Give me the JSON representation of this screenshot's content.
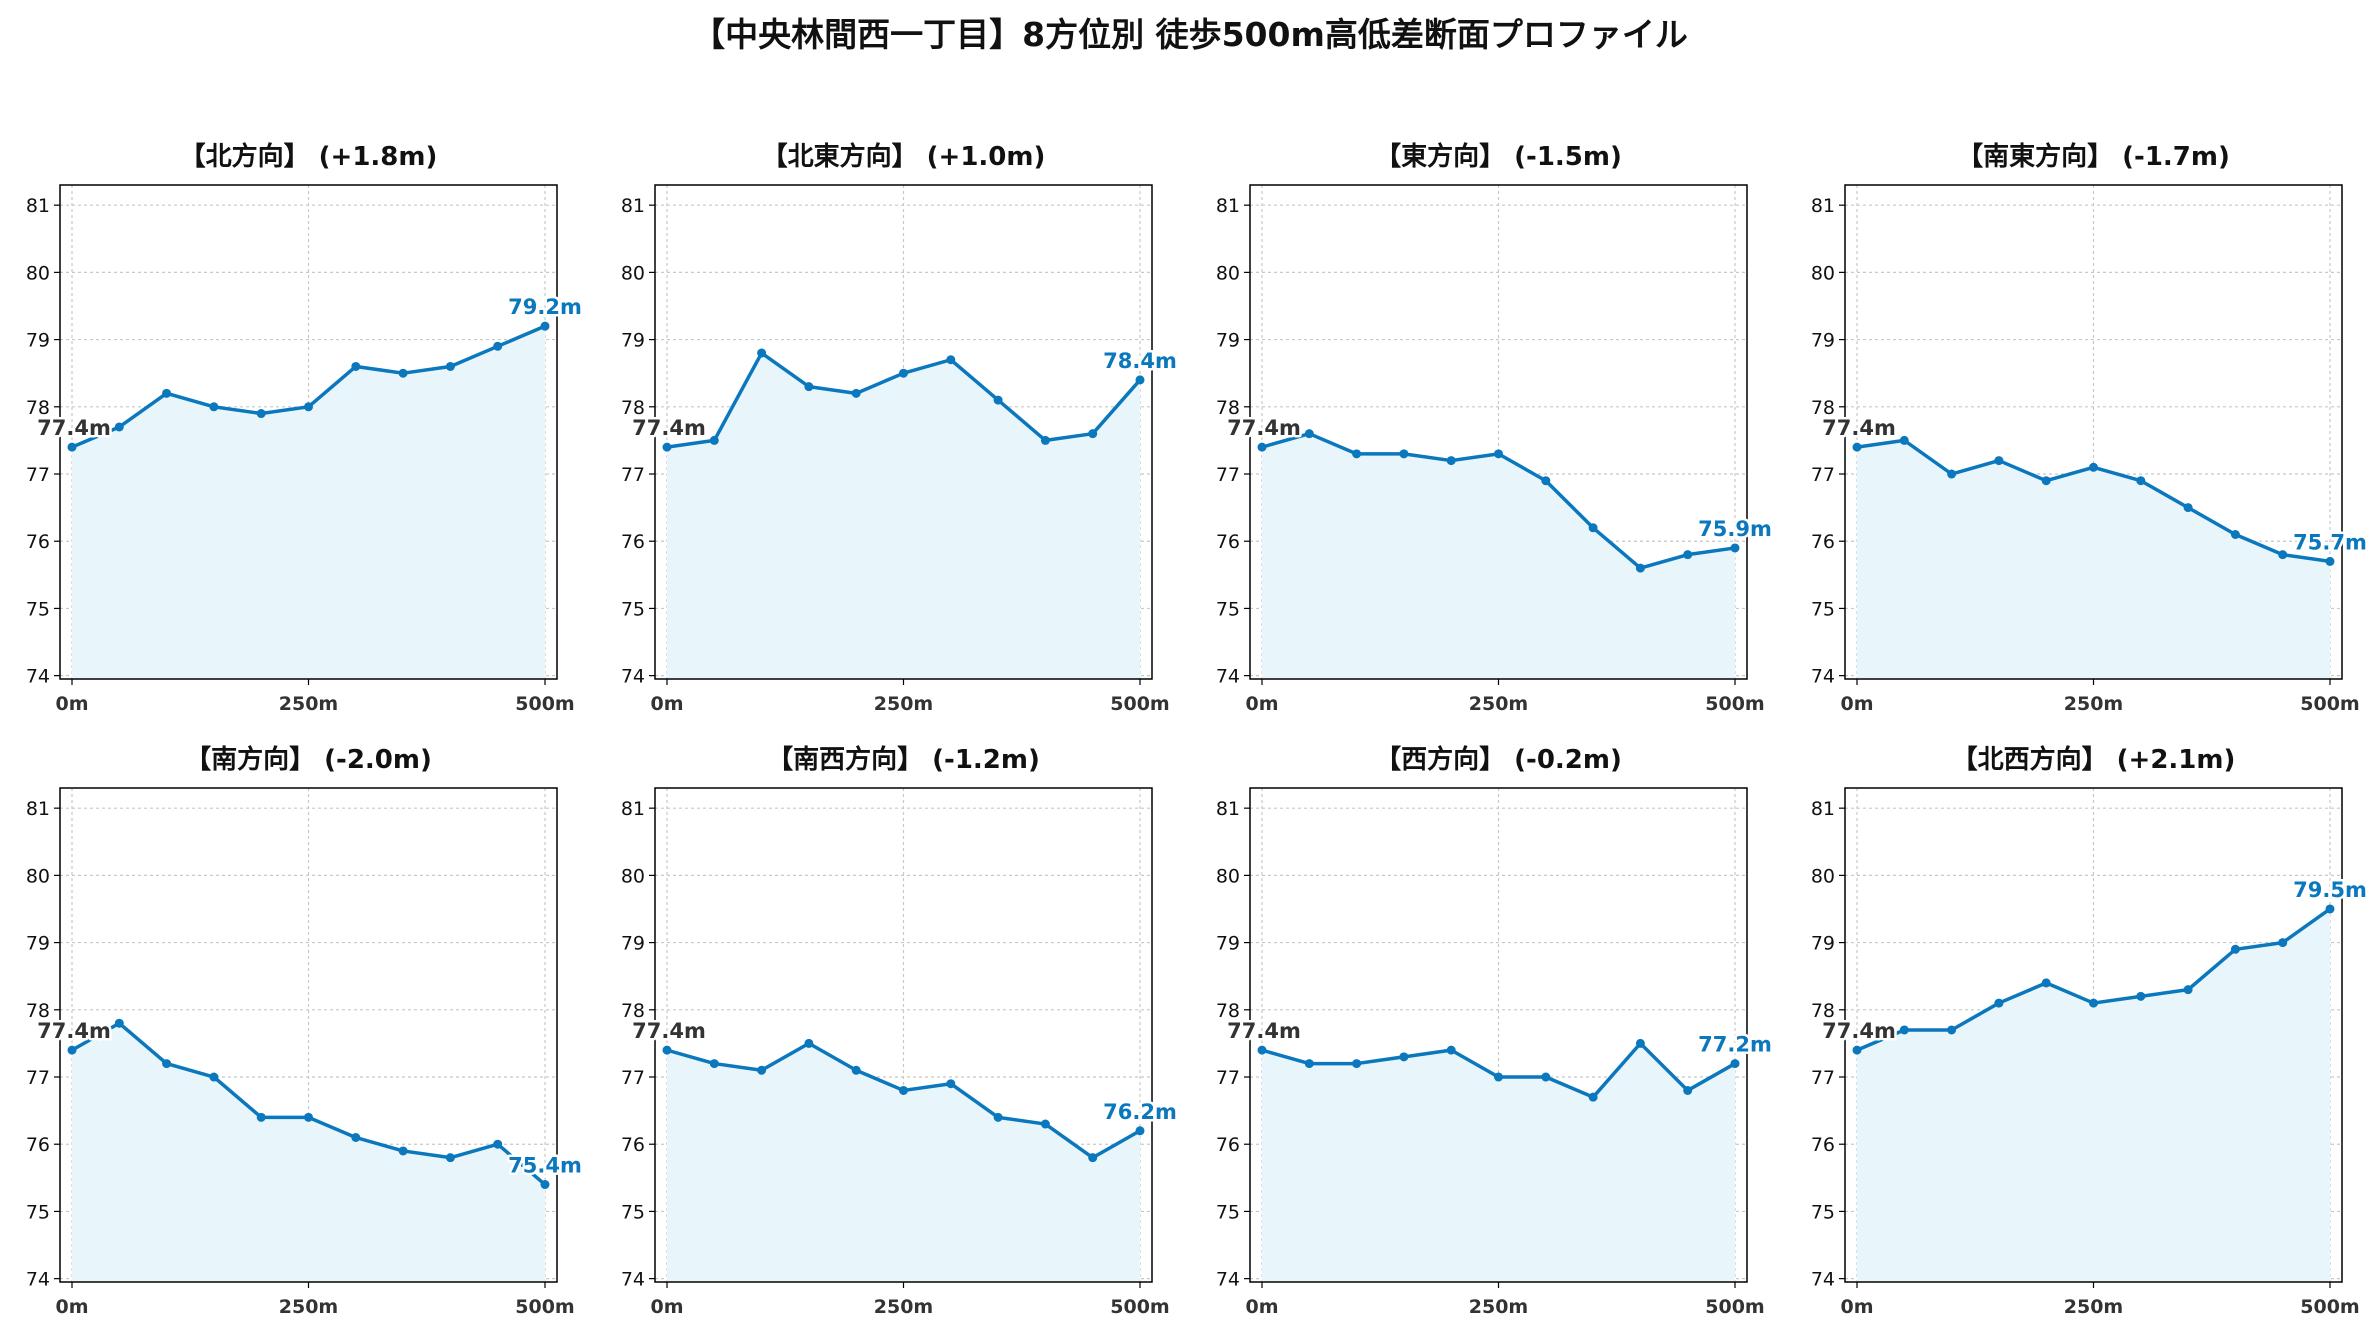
{
  "title": "【中央林間西一丁目】8方位別 徒歩500m高低差断面プロファイル",
  "colors": {
    "line": "#0b77bd",
    "fill": "#e8f6fb",
    "grid": "#c8c8c8",
    "axis": "#000000"
  },
  "chart_data": [
    {
      "type": "area",
      "title": "【北方向】 (+1.8m)",
      "x": [
        0,
        50,
        100,
        150,
        200,
        250,
        300,
        350,
        400,
        450,
        500
      ],
      "values": [
        77.4,
        77.7,
        78.2,
        78.0,
        77.9,
        78.0,
        78.6,
        78.5,
        78.6,
        78.9,
        79.2
      ],
      "start_label": "77.4m",
      "end_label": "79.2m",
      "xticks": [
        "0m",
        "250m",
        "500m"
      ],
      "yticks": [
        "74",
        "75",
        "76",
        "77",
        "78",
        "79",
        "80",
        "81"
      ],
      "ylim": [
        74,
        81.3
      ],
      "xlim": [
        0,
        500
      ],
      "grid": true
    },
    {
      "type": "area",
      "title": "【北東方向】 (+1.0m)",
      "x": [
        0,
        50,
        100,
        150,
        200,
        250,
        300,
        350,
        400,
        450,
        500
      ],
      "values": [
        77.4,
        77.5,
        78.8,
        78.3,
        78.2,
        78.5,
        78.7,
        78.1,
        77.5,
        77.6,
        78.4
      ],
      "start_label": "77.4m",
      "end_label": "78.4m",
      "xticks": [
        "0m",
        "250m",
        "500m"
      ],
      "yticks": [
        "74",
        "75",
        "76",
        "77",
        "78",
        "79",
        "80",
        "81"
      ],
      "ylim": [
        74,
        81.3
      ],
      "xlim": [
        0,
        500
      ],
      "grid": true
    },
    {
      "type": "area",
      "title": "【東方向】 (-1.5m)",
      "x": [
        0,
        50,
        100,
        150,
        200,
        250,
        300,
        350,
        400,
        450,
        500
      ],
      "values": [
        77.4,
        77.6,
        77.3,
        77.3,
        77.2,
        77.3,
        76.9,
        76.2,
        75.6,
        75.8,
        75.9
      ],
      "start_label": "77.4m",
      "end_label": "75.9m",
      "xticks": [
        "0m",
        "250m",
        "500m"
      ],
      "yticks": [
        "74",
        "75",
        "76",
        "77",
        "78",
        "79",
        "80",
        "81"
      ],
      "ylim": [
        74,
        81.3
      ],
      "xlim": [
        0,
        500
      ],
      "grid": true
    },
    {
      "type": "area",
      "title": "【南東方向】 (-1.7m)",
      "x": [
        0,
        50,
        100,
        150,
        200,
        250,
        300,
        350,
        400,
        450,
        500
      ],
      "values": [
        77.4,
        77.5,
        77.0,
        77.2,
        76.9,
        77.1,
        76.9,
        76.5,
        76.1,
        75.8,
        75.7
      ],
      "start_label": "77.4m",
      "end_label": "75.7m",
      "xticks": [
        "0m",
        "250m",
        "500m"
      ],
      "yticks": [
        "74",
        "75",
        "76",
        "77",
        "78",
        "79",
        "80",
        "81"
      ],
      "ylim": [
        74,
        81.3
      ],
      "xlim": [
        0,
        500
      ],
      "grid": true
    },
    {
      "type": "area",
      "title": "【南方向】 (-2.0m)",
      "x": [
        0,
        50,
        100,
        150,
        200,
        250,
        300,
        350,
        400,
        450,
        500
      ],
      "values": [
        77.4,
        77.8,
        77.2,
        77.0,
        76.4,
        76.4,
        76.1,
        75.9,
        75.8,
        76.0,
        75.4
      ],
      "start_label": "77.4m",
      "end_label": "75.4m",
      "xticks": [
        "0m",
        "250m",
        "500m"
      ],
      "yticks": [
        "74",
        "75",
        "76",
        "77",
        "78",
        "79",
        "80",
        "81"
      ],
      "ylim": [
        74,
        81.3
      ],
      "xlim": [
        0,
        500
      ],
      "grid": true
    },
    {
      "type": "area",
      "title": "【南西方向】 (-1.2m)",
      "x": [
        0,
        50,
        100,
        150,
        200,
        250,
        300,
        350,
        400,
        450,
        500
      ],
      "values": [
        77.4,
        77.2,
        77.1,
        77.5,
        77.1,
        76.8,
        76.9,
        76.4,
        76.3,
        75.8,
        76.2
      ],
      "start_label": "77.4m",
      "end_label": "76.2m",
      "xticks": [
        "0m",
        "250m",
        "500m"
      ],
      "yticks": [
        "74",
        "75",
        "76",
        "77",
        "78",
        "79",
        "80",
        "81"
      ],
      "ylim": [
        74,
        81.3
      ],
      "xlim": [
        0,
        500
      ],
      "grid": true
    },
    {
      "type": "area",
      "title": "【西方向】 (-0.2m)",
      "x": [
        0,
        50,
        100,
        150,
        200,
        250,
        300,
        350,
        400,
        450,
        500
      ],
      "values": [
        77.4,
        77.2,
        77.2,
        77.3,
        77.4,
        77.0,
        77.0,
        76.7,
        77.5,
        76.8,
        77.2
      ],
      "start_label": "77.4m",
      "end_label": "77.2m",
      "xticks": [
        "0m",
        "250m",
        "500m"
      ],
      "yticks": [
        "74",
        "75",
        "76",
        "77",
        "78",
        "79",
        "80",
        "81"
      ],
      "ylim": [
        74,
        81.3
      ],
      "xlim": [
        0,
        500
      ],
      "grid": true
    },
    {
      "type": "area",
      "title": "【北西方向】 (+2.1m)",
      "x": [
        0,
        50,
        100,
        150,
        200,
        250,
        300,
        350,
        400,
        450,
        500
      ],
      "values": [
        77.4,
        77.7,
        77.7,
        78.1,
        78.4,
        78.1,
        78.2,
        78.3,
        78.9,
        79.0,
        79.5
      ],
      "start_label": "77.4m",
      "end_label": "79.5m",
      "xticks": [
        "0m",
        "250m",
        "500m"
      ],
      "yticks": [
        "74",
        "75",
        "76",
        "77",
        "78",
        "79",
        "80",
        "81"
      ],
      "ylim": [
        74,
        81.3
      ],
      "xlim": [
        0,
        500
      ],
      "grid": true
    }
  ]
}
